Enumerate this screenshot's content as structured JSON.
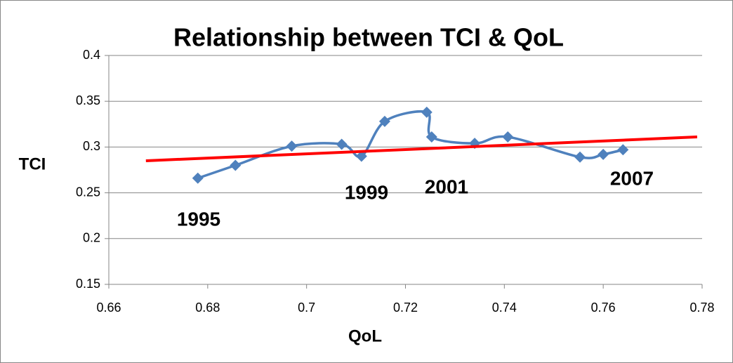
{
  "chart_data": {
    "type": "scatter",
    "title": "Relationship between TCI & QoL",
    "x_label": "QoL",
    "y_label": "TCI",
    "series": [
      {
        "color": "#4f81bd",
        "x": [
          0.678,
          0.6856,
          0.697,
          0.7071,
          0.7111,
          0.7158,
          0.7243,
          0.7253,
          0.734,
          0.7407,
          0.7553,
          0.76,
          0.764
        ],
        "values": [
          0.266,
          0.28,
          0.301,
          0.303,
          0.29,
          0.328,
          0.338,
          0.311,
          0.304,
          0.311,
          0.289,
          0.292,
          0.297
        ]
      }
    ],
    "trendline": {
      "color": "#ff0000",
      "x": [
        0.6675,
        0.779
      ],
      "values": [
        0.285,
        0.311
      ]
    },
    "annotations": [
      "1995",
      "1999",
      "2001",
      "2007"
    ],
    "xlim": [
      0.66,
      0.78
    ],
    "xticks": [
      0.66,
      0.68,
      0.7,
      0.72,
      0.74,
      0.76,
      0.78
    ],
    "ylim": [
      0.15,
      0.4
    ],
    "yticks": [
      0.15,
      0.2,
      0.25,
      0.3,
      0.35,
      0.4
    ],
    "grid": true
  }
}
